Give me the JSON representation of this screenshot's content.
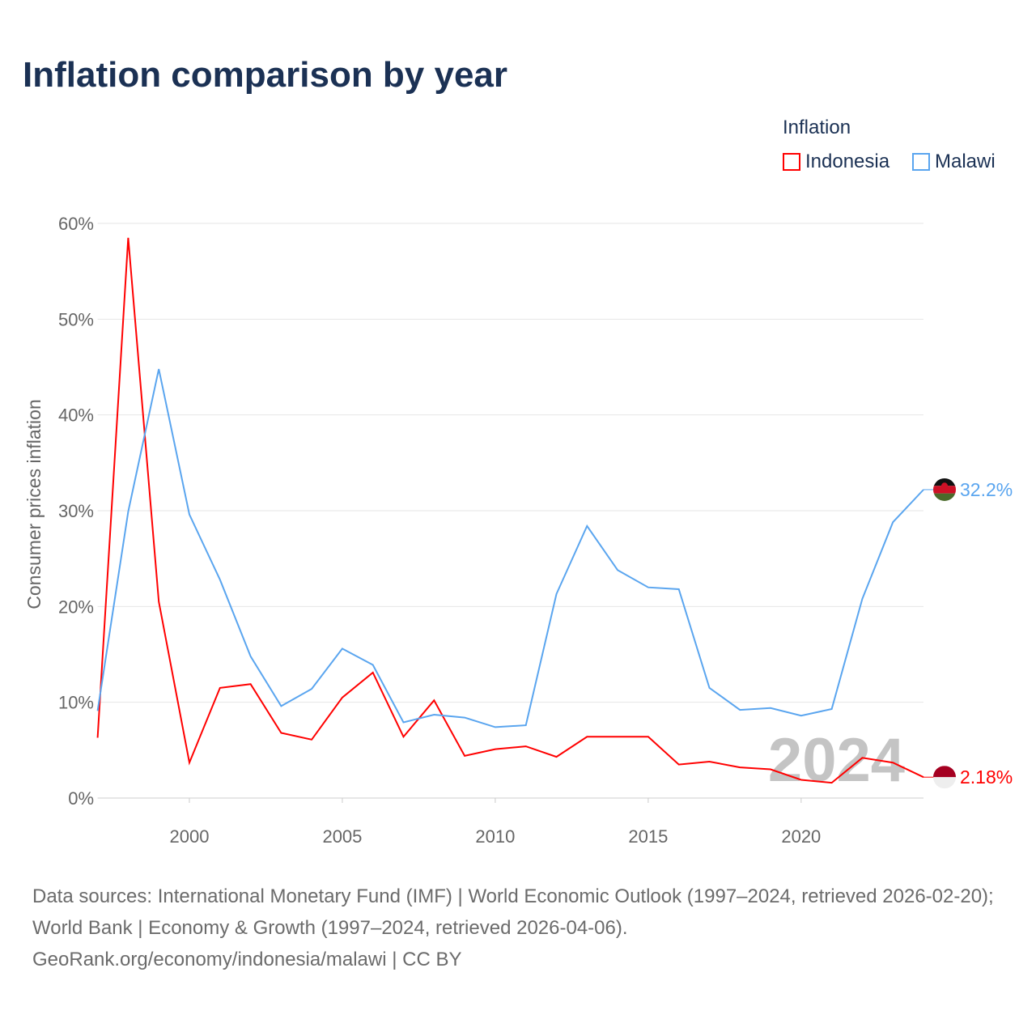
{
  "title": "Inflation comparison by year",
  "legend": {
    "title": "Inflation",
    "items": [
      "Indonesia",
      "Malawi"
    ]
  },
  "year_watermark": "2024",
  "footer": {
    "line1": "Data sources: International Monetary Fund (IMF) | World Economic Outlook (1997–2024, retrieved 2026-02-20); World Bank | Economy & Growth (1997–2024, retrieved 2026-04-06).",
    "line2": "GeoRank.org/economy/indonesia/malawi | CC BY"
  },
  "chart_data": {
    "type": "line",
    "title": "Inflation comparison by year",
    "xlabel": "",
    "ylabel": "Consumer prices inflation",
    "xlim": [
      1997,
      2024
    ],
    "ylim": [
      0,
      60
    ],
    "x_ticks": [
      "2000",
      "2005",
      "2010",
      "2015",
      "2020"
    ],
    "y_ticks": [
      "0%",
      "10%",
      "20%",
      "30%",
      "40%",
      "50%",
      "60%"
    ],
    "grid": true,
    "legend_position": "top-right",
    "x": [
      1997,
      1998,
      1999,
      2000,
      2001,
      2002,
      2003,
      2004,
      2005,
      2006,
      2007,
      2008,
      2009,
      2010,
      2011,
      2012,
      2013,
      2014,
      2015,
      2016,
      2017,
      2018,
      2019,
      2020,
      2021,
      2022,
      2023,
      2024
    ],
    "series": [
      {
        "name": "Indonesia",
        "color": "#ff0000",
        "end_label": "2.18%",
        "values": [
          6.3,
          58.5,
          20.5,
          3.7,
          11.5,
          11.9,
          6.8,
          6.1,
          10.5,
          13.1,
          6.4,
          10.2,
          4.4,
          5.1,
          5.4,
          4.3,
          6.4,
          6.4,
          6.4,
          3.5,
          3.8,
          3.2,
          3.0,
          1.9,
          1.6,
          4.2,
          3.7,
          2.18
        ]
      },
      {
        "name": "Malawi",
        "color": "#5aa5ef",
        "end_label": "32.2%",
        "values": [
          9.1,
          29.9,
          44.8,
          29.6,
          22.8,
          14.8,
          9.6,
          11.4,
          15.6,
          13.9,
          7.9,
          8.7,
          8.4,
          7.4,
          7.6,
          21.3,
          28.4,
          23.8,
          22.0,
          21.8,
          11.5,
          9.2,
          9.4,
          8.6,
          9.3,
          20.8,
          28.8,
          32.2
        ]
      }
    ]
  }
}
